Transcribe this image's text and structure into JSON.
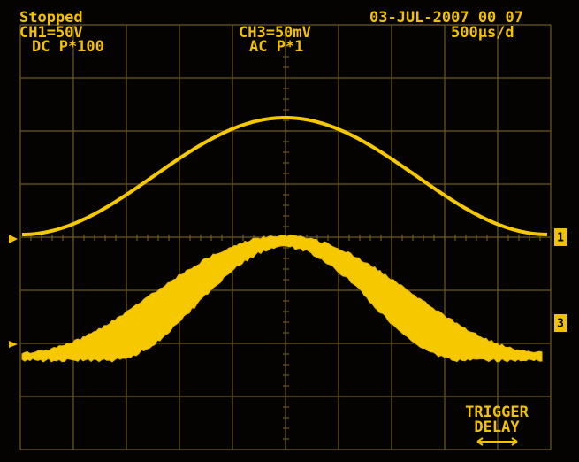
{
  "status": "Stopped",
  "ch1": {
    "scale": "CH1=50V",
    "coupling": "DC P*100"
  },
  "ch3": {
    "scale": "CH3=50mV",
    "coupling": "AC P*1"
  },
  "datetime": "03-JUL-2007 00 07",
  "timebase": "500µs/d",
  "markers": [
    "1",
    "3"
  ],
  "button": {
    "line1": "TRIGGER",
    "line2": "DELAY"
  }
}
